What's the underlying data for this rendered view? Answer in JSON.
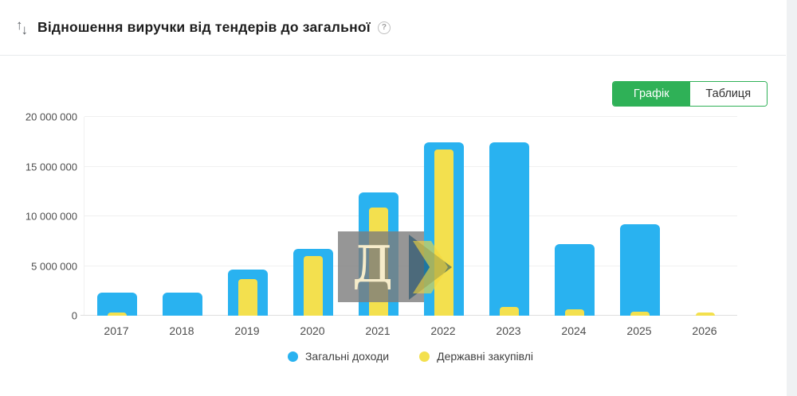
{
  "page": {
    "background": "#ffffff",
    "side_strip_color": "#eff1f3"
  },
  "header": {
    "title": "Відношення виручки від тендерів до загальної",
    "sort_icon_up": "↑",
    "sort_icon_down": "↓",
    "help_icon": "?"
  },
  "view_toggle": {
    "options": [
      {
        "label": "Графік",
        "active": true
      },
      {
        "label": "Таблиця",
        "active": false
      }
    ],
    "active_color": "#2fb157"
  },
  "watermark": {
    "letter": "Д",
    "arrow": "right-chevron"
  },
  "colors": {
    "total_income_blue": "#29b2f0",
    "procurement_yellow": "#f3e04e",
    "accent_green": "#2fb157",
    "grid": "#f0f0f0",
    "axis_text": "#4d4d4d"
  },
  "chart_data": {
    "type": "bar",
    "title": "Відношення виручки від тендерів до загальної",
    "categories": [
      "2017",
      "2018",
      "2019",
      "2020",
      "2021",
      "2022",
      "2023",
      "2024",
      "2025",
      "2026"
    ],
    "series": [
      {
        "name": "Загальні доходи",
        "color": "#29b2f0",
        "values": [
          2300000,
          2300000,
          4650000,
          6700000,
          12400000,
          17400000,
          17400000,
          7200000,
          9200000,
          0
        ]
      },
      {
        "name": "Державні закупівлі",
        "color": "#f3e04e",
        "values": [
          300000,
          0,
          3650000,
          6000000,
          10900000,
          16700000,
          900000,
          600000,
          400000,
          300000
        ]
      }
    ],
    "xlabel": "",
    "ylabel": "",
    "ylim": [
      0,
      20000000
    ],
    "yticks": [
      {
        "value": 0,
        "label": "0"
      },
      {
        "value": 5000000,
        "label": "5 000 000"
      },
      {
        "value": 10000000,
        "label": "10 000 000"
      },
      {
        "value": 15000000,
        "label": "15 000 000"
      },
      {
        "value": 20000000,
        "label": "20 000 000"
      }
    ],
    "grid": true,
    "legend_position": "bottom"
  }
}
